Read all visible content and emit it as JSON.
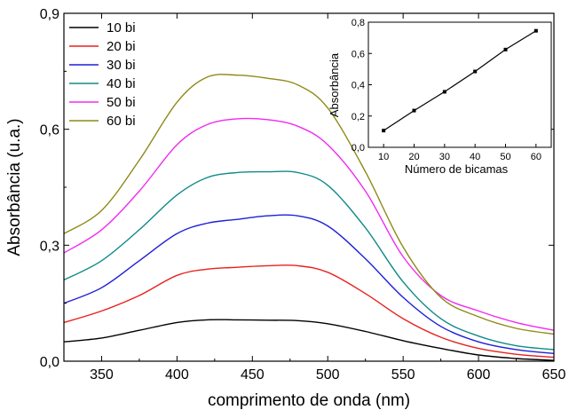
{
  "chart_data": [
    {
      "type": "line",
      "title": "",
      "xlabel": "comprimento de onda (nm)",
      "ylabel": "Absorbância (u.a.)",
      "xlim": [
        325,
        650
      ],
      "ylim": [
        0,
        0.9
      ],
      "xticks": [
        350,
        400,
        450,
        500,
        550,
        600,
        650
      ],
      "xtick_labels": [
        "350",
        "400",
        "450",
        "500",
        "550",
        "600",
        "650"
      ],
      "yticks": [
        0,
        0.3,
        0.6,
        0.9
      ],
      "ytick_labels": [
        "0,0",
        "0,3",
        "0,6",
        "0,9"
      ],
      "grid": false,
      "legend": "top-left",
      "series": [
        {
          "name": "10 bi",
          "color": "#000000",
          "x": [
            325,
            350,
            375,
            400,
            420,
            440,
            460,
            480,
            500,
            525,
            550,
            575,
            600,
            625,
            650
          ],
          "y": [
            0.05,
            0.06,
            0.08,
            0.1,
            0.107,
            0.107,
            0.106,
            0.105,
            0.097,
            0.077,
            0.053,
            0.033,
            0.016,
            0.007,
            0.002
          ]
        },
        {
          "name": "20 bi",
          "color": "#e8211f",
          "x": [
            325,
            350,
            375,
            400,
            420,
            440,
            460,
            480,
            500,
            525,
            550,
            575,
            600,
            625,
            650
          ],
          "y": [
            0.1,
            0.13,
            0.17,
            0.222,
            0.238,
            0.243,
            0.247,
            0.247,
            0.23,
            0.175,
            0.11,
            0.062,
            0.033,
            0.018,
            0.01
          ]
        },
        {
          "name": "30 bi",
          "color": "#1f1fd8",
          "x": [
            325,
            350,
            375,
            400,
            420,
            440,
            460,
            480,
            500,
            525,
            550,
            575,
            600,
            625,
            650
          ],
          "y": [
            0.15,
            0.19,
            0.26,
            0.33,
            0.357,
            0.367,
            0.376,
            0.376,
            0.35,
            0.265,
            0.165,
            0.09,
            0.05,
            0.03,
            0.02
          ]
        },
        {
          "name": "40 bi",
          "color": "#108a8a",
          "x": [
            325,
            350,
            375,
            400,
            420,
            440,
            460,
            480,
            500,
            525,
            550,
            575,
            600,
            625,
            650
          ],
          "y": [
            0.21,
            0.26,
            0.34,
            0.43,
            0.475,
            0.488,
            0.49,
            0.488,
            0.455,
            0.345,
            0.205,
            0.11,
            0.065,
            0.04,
            0.03
          ]
        },
        {
          "name": "50 bi",
          "color": "#f02bf0",
          "x": [
            325,
            350,
            375,
            400,
            420,
            440,
            460,
            480,
            500,
            525,
            550,
            575,
            600,
            625,
            650
          ],
          "y": [
            0.28,
            0.34,
            0.44,
            0.56,
            0.612,
            0.627,
            0.625,
            0.608,
            0.56,
            0.44,
            0.27,
            0.17,
            0.13,
            0.1,
            0.08
          ]
        },
        {
          "name": "60 bi",
          "color": "#8d8a16",
          "x": [
            325,
            350,
            375,
            400,
            420,
            440,
            460,
            480,
            500,
            525,
            550,
            575,
            600,
            625,
            650
          ],
          "y": [
            0.33,
            0.39,
            0.52,
            0.67,
            0.735,
            0.74,
            0.732,
            0.715,
            0.655,
            0.49,
            0.295,
            0.165,
            0.115,
            0.085,
            0.07
          ]
        }
      ]
    },
    {
      "type": "line",
      "title": "",
      "xlabel": "Número de bicamas",
      "ylabel": "Absorbância",
      "xlim": [
        5,
        65
      ],
      "ylim": [
        0,
        0.8
      ],
      "xticks": [
        10,
        20,
        30,
        40,
        50,
        60
      ],
      "xtick_labels": [
        "10",
        "20",
        "30",
        "40",
        "50",
        "60"
      ],
      "yticks": [
        0,
        0.2,
        0.4,
        0.6,
        0.8
      ],
      "ytick_labels": [
        "0,0",
        "0,2",
        "0,4",
        "0,6",
        "0,8"
      ],
      "grid": false,
      "legend": "none",
      "series": [
        {
          "color": "#000000",
          "x": [
            10,
            20,
            30,
            40,
            50,
            60
          ],
          "y": [
            0.107,
            0.235,
            0.355,
            0.485,
            0.625,
            0.745
          ]
        }
      ]
    }
  ]
}
